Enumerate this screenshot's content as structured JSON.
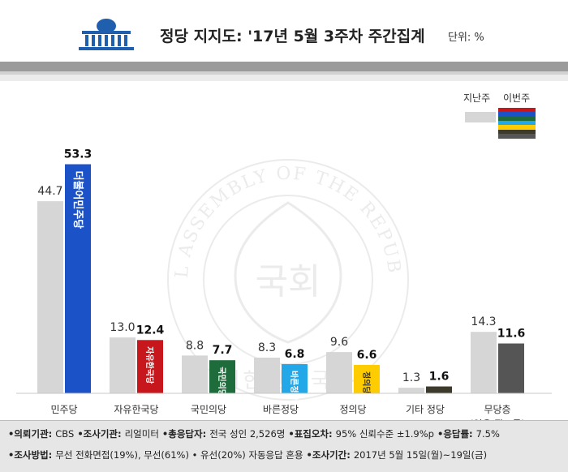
{
  "header": {
    "title": "정당 지지도: '17년 5월 3주차 주간집계",
    "unit": "단위: %"
  },
  "legend": {
    "last_week": "지난주",
    "this_week": "이번주"
  },
  "colors": {
    "last_week_bar": "#d6d6d6",
    "band": "#9b9b9b",
    "minju": "#1c52c8",
    "jayu": "#c8161d",
    "gukmin": "#1e6b3c",
    "bareun": "#22a7e8",
    "jeongui": "#ffcc00",
    "other": "#3d3a2c",
    "none": "#555555"
  },
  "chart_data": {
    "type": "bar",
    "categories": [
      "민주당",
      "자유한국당",
      "국민의당",
      "바른정당",
      "정의당",
      "기타 정당",
      "무당층"
    ],
    "category_sub": [
      "",
      "",
      "",
      "",
      "",
      "",
      "(없음·잘모름)"
    ],
    "series": [
      {
        "name": "지난주",
        "values": [
          44.7,
          13.0,
          8.8,
          8.3,
          9.6,
          1.3,
          14.3
        ]
      },
      {
        "name": "이번주",
        "values": [
          53.3,
          12.4,
          7.7,
          6.8,
          6.6,
          1.6,
          11.6
        ]
      }
    ],
    "party_logos": [
      "더불어민주당",
      "자유한국당",
      "국민의당",
      "바른정당",
      "정의당",
      "",
      ""
    ],
    "ylim": [
      0,
      55
    ]
  },
  "watermark": {
    "ring_text": "THE NATIONAL ASSEMBLY OF THE REPUBLIC OF KOREA",
    "center_text": "국회",
    "bottom_text": "대한민국국회"
  },
  "footer": {
    "line1": [
      {
        "k": "•의뢰기관: ",
        "v": "CBS"
      },
      {
        "k": " •조사기관: ",
        "v": "리얼미터"
      },
      {
        "k": " •총응답자: ",
        "v": "전국 성인 2,526명"
      },
      {
        "k": " •표집오차: ",
        "v": "95% 신뢰수준 ±1.9%p"
      },
      {
        "k": " •응답률: ",
        "v": "7.5%"
      }
    ],
    "line2": [
      {
        "k": "•조사방법: ",
        "v": "무선 전화면접(19%), 무선(61%) • 유선(20%) 자동응답 혼용"
      },
      {
        "k": " •조사기간: ",
        "v": "2017년 5월 15일(월)~19일(금)"
      }
    ]
  }
}
